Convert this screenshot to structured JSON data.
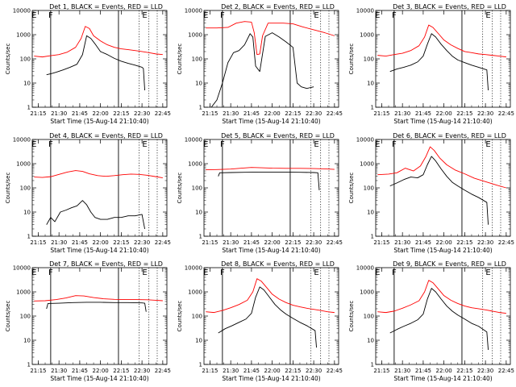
{
  "colors": {
    "events": "#000000",
    "lld": "#ff0000",
    "background": "#ffffff",
    "axis": "#000000"
  },
  "chart_data": [
    {
      "type": "line",
      "title": "Det 1, BLACK = Events, RED = LLD",
      "xlabel": "Start Time (15-Aug-14 21:10:40)",
      "ylabel": "Counts/sec",
      "y_scale": "log",
      "ylim": [
        1,
        10000
      ],
      "y_ticks": [
        "1",
        "10",
        "100",
        "1000",
        "10000"
      ],
      "x_ticks": [
        "21:15",
        "21:30",
        "21:45",
        "22:00",
        "22:15",
        "22:30",
        "22:45"
      ],
      "markers": [
        "E",
        "F",
        "E"
      ],
      "series": [
        {
          "name": "Events",
          "color": "#000000",
          "x": [
            "21:21",
            "21:25",
            "21:28",
            "21:33",
            "21:38",
            "21:43",
            "21:47",
            "21:50",
            "21:53",
            "21:56",
            "22:00",
            "22:05",
            "22:10",
            "22:15",
            "22:20",
            "22:25",
            "22:30",
            "22:31",
            "22:32"
          ],
          "y": [
            22,
            25,
            28,
            35,
            45,
            60,
            150,
            900,
            700,
            420,
            200,
            150,
            105,
            80,
            65,
            55,
            45,
            40,
            5
          ]
        },
        {
          "name": "LLD",
          "color": "#ff0000",
          "x": [
            "21:12",
            "21:18",
            "21:24",
            "21:30",
            "21:36",
            "21:42",
            "21:46",
            "21:49",
            "21:52",
            "21:55",
            "22:00",
            "22:05",
            "22:10",
            "22:15",
            "22:20",
            "22:25",
            "22:30",
            "22:35",
            "22:40",
            "22:45"
          ],
          "y": [
            130,
            120,
            135,
            150,
            190,
            300,
            700,
            2200,
            1800,
            900,
            550,
            380,
            300,
            260,
            240,
            220,
            200,
            180,
            160,
            150
          ]
        }
      ]
    },
    {
      "type": "line",
      "title": "Det 2, BLACK = Events, RED = LLD",
      "xlabel": "Start Time (15-Aug-14 21:10:40)",
      "ylabel": "Counts/sec",
      "y_scale": "log",
      "ylim": [
        1,
        10000
      ],
      "y_ticks": [
        "1",
        "10",
        "100",
        "1000",
        "10000"
      ],
      "x_ticks": [
        "21:15",
        "21:30",
        "21:45",
        "22:00",
        "22:15",
        "22:30",
        "22:45"
      ],
      "markers": [
        "E",
        "F",
        "E"
      ],
      "series": [
        {
          "name": "Events",
          "color": "#000000",
          "x": [
            "21:16",
            "21:20",
            "21:24",
            "21:28",
            "21:32",
            "21:36",
            "21:40",
            "21:44",
            "21:46",
            "21:48",
            "21:51",
            "21:55",
            "22:00",
            "22:05",
            "22:10",
            "22:15",
            "22:18",
            "22:21",
            "22:25",
            "22:30"
          ],
          "y": [
            1,
            2,
            10,
            70,
            180,
            220,
            380,
            1100,
            800,
            50,
            30,
            850,
            1200,
            800,
            500,
            300,
            10,
            7,
            6,
            7
          ]
        },
        {
          "name": "LLD",
          "color": "#ff0000",
          "x": [
            "21:12",
            "21:20",
            "21:28",
            "21:34",
            "21:40",
            "21:45",
            "21:47",
            "21:49",
            "21:51",
            "21:53",
            "21:57",
            "22:02",
            "22:08",
            "22:15",
            "22:22",
            "22:30",
            "22:38",
            "22:45"
          ],
          "y": [
            1900,
            1900,
            2000,
            3000,
            3500,
            3300,
            1200,
            150,
            160,
            900,
            3000,
            3000,
            3000,
            2800,
            2100,
            1600,
            1200,
            900
          ]
        }
      ]
    },
    {
      "type": "line",
      "title": "Det 3, BLACK = Events, RED = LLD",
      "xlabel": "Start Time (15-Aug-14 21:10:40)",
      "ylabel": "Counts/sec",
      "y_scale": "log",
      "ylim": [
        1,
        10000
      ],
      "y_ticks": [
        "1",
        "10",
        "100",
        "1000",
        "10000"
      ],
      "x_ticks": [
        "21:15",
        "21:30",
        "21:45",
        "22:00",
        "22:15",
        "22:30",
        "22:45"
      ],
      "markers": [
        "E",
        "F",
        "E"
      ],
      "series": [
        {
          "name": "Events",
          "color": "#000000",
          "x": [
            "21:21",
            "21:26",
            "21:31",
            "21:36",
            "21:41",
            "21:45",
            "21:48",
            "21:51",
            "21:54",
            "21:58",
            "22:02",
            "22:06",
            "22:10",
            "22:15",
            "22:20",
            "22:25",
            "22:31",
            "22:32"
          ],
          "y": [
            30,
            38,
            45,
            55,
            75,
            130,
            400,
            1100,
            800,
            400,
            220,
            130,
            90,
            70,
            55,
            45,
            35,
            5
          ]
        },
        {
          "name": "LLD",
          "color": "#ff0000",
          "x": [
            "21:12",
            "21:18",
            "21:24",
            "21:30",
            "21:36",
            "21:42",
            "21:46",
            "21:49",
            "21:52",
            "21:56",
            "22:00",
            "22:05",
            "22:10",
            "22:15",
            "22:20",
            "22:25",
            "22:30",
            "22:35",
            "22:40",
            "22:45"
          ],
          "y": [
            140,
            130,
            150,
            170,
            220,
            350,
            800,
            2500,
            2000,
            1100,
            600,
            380,
            270,
            200,
            180,
            160,
            150,
            140,
            130,
            120
          ]
        }
      ]
    },
    {
      "type": "line",
      "title": "Det 4, BLACK = Events, RED = LLD",
      "xlabel": "Start Time (15-Aug-14 21:10:40)",
      "ylabel": "Counts/sec",
      "y_scale": "log",
      "ylim": [
        1,
        10000
      ],
      "y_ticks": [
        "1",
        "10",
        "100",
        "1000",
        "10000"
      ],
      "x_ticks": [
        "21:15",
        "21:30",
        "21:45",
        "22:00",
        "22:15",
        "22:30",
        "22:45"
      ],
      "markers": [
        "E",
        "F",
        "E"
      ],
      "series": [
        {
          "name": "Events",
          "color": "#000000",
          "x": [
            "21:21",
            "21:24",
            "21:27",
            "21:31",
            "21:35",
            "21:39",
            "21:43",
            "21:47",
            "21:50",
            "21:53",
            "21:56",
            "22:00",
            "22:05",
            "22:10",
            "22:15",
            "22:20",
            "22:25",
            "22:30",
            "22:32"
          ],
          "y": [
            3,
            6,
            4,
            10,
            12,
            15,
            18,
            30,
            20,
            10,
            6,
            5,
            5,
            6,
            6,
            7,
            7,
            8,
            2
          ]
        },
        {
          "name": "LLD",
          "color": "#ff0000",
          "x": [
            "21:12",
            "21:18",
            "21:24",
            "21:30",
            "21:36",
            "21:42",
            "21:47",
            "21:52",
            "21:58",
            "22:04",
            "22:10",
            "22:16",
            "22:22",
            "22:28",
            "22:34",
            "22:40",
            "22:45"
          ],
          "y": [
            280,
            270,
            290,
            360,
            450,
            520,
            480,
            380,
            320,
            300,
            320,
            350,
            370,
            360,
            330,
            290,
            260
          ]
        }
      ]
    },
    {
      "type": "line",
      "title": "Det 5, BLACK = Events, RED = LLD",
      "xlabel": "Start Time (15-Aug-14 21:10:40)",
      "ylabel": "Counts/sec",
      "y_scale": "log",
      "ylim": [
        1,
        10000
      ],
      "y_ticks": [
        "1",
        "10",
        "100",
        "1000",
        "10000"
      ],
      "x_ticks": [
        "21:15",
        "21:30",
        "21:45",
        "22:00",
        "22:15",
        "22:30",
        "22:45"
      ],
      "markers": [
        "E",
        "F",
        "E"
      ],
      "series": [
        {
          "name": "Events",
          "color": "#000000",
          "x": [
            "21:21",
            "21:22",
            "21:30",
            "21:40",
            "21:50",
            "22:00",
            "22:10",
            "22:20",
            "22:30",
            "22:33",
            "22:34"
          ],
          "y": [
            300,
            420,
            430,
            440,
            450,
            450,
            450,
            440,
            430,
            420,
            80
          ]
        },
        {
          "name": "LLD",
          "color": "#ff0000",
          "x": [
            "21:12",
            "21:20",
            "21:30",
            "21:38",
            "21:45",
            "21:52",
            "22:00",
            "22:10",
            "22:20",
            "22:30",
            "22:38",
            "22:45"
          ],
          "y": [
            560,
            570,
            600,
            650,
            700,
            680,
            650,
            640,
            640,
            630,
            610,
            580
          ]
        }
      ]
    },
    {
      "type": "line",
      "title": "Det 6, BLACK = Events, RED = LLD",
      "xlabel": "Start Time (15-Aug-14 21:10:40)",
      "ylabel": "Counts/sec",
      "y_scale": "log",
      "ylim": [
        1,
        10000
      ],
      "y_ticks": [
        "1",
        "10",
        "100",
        "1000",
        "10000"
      ],
      "x_ticks": [
        "21:15",
        "21:30",
        "21:45",
        "22:00",
        "22:15",
        "22:30",
        "22:45"
      ],
      "markers": [
        "E",
        "F",
        "E"
      ],
      "series": [
        {
          "name": "Events",
          "color": "#000000",
          "x": [
            "21:21",
            "21:26",
            "21:31",
            "21:36",
            "21:41",
            "21:45",
            "21:48",
            "21:51",
            "21:54",
            "21:58",
            "22:02",
            "22:06",
            "22:10",
            "22:15",
            "22:20",
            "22:25",
            "22:31",
            "22:32"
          ],
          "y": [
            120,
            160,
            220,
            280,
            260,
            350,
            900,
            2000,
            1300,
            600,
            300,
            170,
            120,
            80,
            55,
            40,
            25,
            3
          ]
        },
        {
          "name": "LLD",
          "color": "#ff0000",
          "x": [
            "21:12",
            "21:20",
            "21:26",
            "21:32",
            "21:38",
            "21:43",
            "21:47",
            "21:50",
            "21:53",
            "21:57",
            "22:02",
            "22:08",
            "22:15",
            "22:22",
            "22:30",
            "22:38",
            "22:45"
          ],
          "y": [
            350,
            370,
            420,
            650,
            500,
            800,
            2000,
            5000,
            3500,
            1700,
            900,
            550,
            380,
            250,
            180,
            130,
            100
          ]
        }
      ]
    },
    {
      "type": "line",
      "title": "Det 7, BLACK = Events, RED = LLD",
      "xlabel": "Start Time (15-Aug-14 21:10:40)",
      "ylabel": "Counts/sec",
      "y_scale": "log",
      "ylim": [
        1,
        10000
      ],
      "y_ticks": [
        "1",
        "10",
        "100",
        "1000",
        "10000"
      ],
      "x_ticks": [
        "21:15",
        "21:30",
        "21:45",
        "22:00",
        "22:15",
        "22:30",
        "22:45"
      ],
      "markers": [
        "E",
        "F",
        "E"
      ],
      "series": [
        {
          "name": "Events",
          "color": "#000000",
          "x": [
            "21:21",
            "21:22",
            "21:30",
            "21:40",
            "21:50",
            "22:00",
            "22:10",
            "22:20",
            "22:30",
            "22:32",
            "22:33"
          ],
          "y": [
            200,
            330,
            340,
            360,
            370,
            370,
            360,
            360,
            350,
            340,
            150
          ]
        },
        {
          "name": "LLD",
          "color": "#ff0000",
          "x": [
            "21:12",
            "21:20",
            "21:28",
            "21:35",
            "21:42",
            "21:48",
            "21:55",
            "22:02",
            "22:10",
            "22:18",
            "22:26",
            "22:34",
            "22:40",
            "22:45"
          ],
          "y": [
            420,
            430,
            480,
            560,
            700,
            680,
            580,
            520,
            490,
            480,
            480,
            470,
            450,
            430
          ]
        }
      ]
    },
    {
      "type": "line",
      "title": "Det 8, BLACK = Events, RED = LLD",
      "xlabel": "Start Time (15-Aug-14 21:10:40)",
      "ylabel": "Counts/sec",
      "y_scale": "log",
      "ylim": [
        1,
        10000
      ],
      "y_ticks": [
        "1",
        "10",
        "100",
        "1000",
        "10000"
      ],
      "x_ticks": [
        "21:15",
        "21:30",
        "21:45",
        "22:00",
        "22:15",
        "22:30",
        "22:45"
      ],
      "markers": [
        "E",
        "F",
        "E"
      ],
      "series": [
        {
          "name": "Events",
          "color": "#000000",
          "x": [
            "21:21",
            "21:26",
            "21:31",
            "21:36",
            "21:41",
            "21:45",
            "21:48",
            "21:51",
            "21:54",
            "21:58",
            "22:02",
            "22:06",
            "22:10",
            "22:15",
            "22:20",
            "22:25",
            "22:31",
            "22:32"
          ],
          "y": [
            20,
            30,
            40,
            55,
            75,
            130,
            600,
            1600,
            1200,
            600,
            300,
            180,
            120,
            80,
            55,
            40,
            25,
            5
          ]
        },
        {
          "name": "LLD",
          "color": "#ff0000",
          "x": [
            "21:12",
            "21:18",
            "21:24",
            "21:30",
            "21:36",
            "21:42",
            "21:46",
            "21:49",
            "21:52",
            "21:56",
            "22:00",
            "22:05",
            "22:10",
            "22:15",
            "22:20",
            "22:25",
            "22:30",
            "22:35",
            "22:40",
            "22:45"
          ],
          "y": [
            150,
            140,
            170,
            220,
            300,
            450,
            1000,
            3500,
            2800,
            1500,
            800,
            500,
            360,
            280,
            240,
            210,
            190,
            170,
            150,
            140
          ]
        }
      ]
    },
    {
      "type": "line",
      "title": "Det 9, BLACK = Events, RED = LLD",
      "xlabel": "Start Time (15-Aug-14 21:10:40)",
      "ylabel": "Counts/sec",
      "y_scale": "log",
      "ylim": [
        1,
        10000
      ],
      "y_ticks": [
        "1",
        "10",
        "100",
        "1000",
        "10000"
      ],
      "x_ticks": [
        "21:15",
        "21:30",
        "21:45",
        "22:00",
        "22:15",
        "22:30",
        "22:45"
      ],
      "markers": [
        "E",
        "F",
        "E"
      ],
      "series": [
        {
          "name": "Events",
          "color": "#000000",
          "x": [
            "21:21",
            "21:26",
            "21:31",
            "21:36",
            "21:41",
            "21:45",
            "21:48",
            "21:51",
            "21:54",
            "21:58",
            "22:02",
            "22:06",
            "22:10",
            "22:15",
            "22:20",
            "22:25",
            "22:31",
            "22:32"
          ],
          "y": [
            20,
            28,
            38,
            50,
            70,
            120,
            500,
            1400,
            1000,
            500,
            260,
            160,
            110,
            75,
            50,
            38,
            22,
            4
          ]
        },
        {
          "name": "LLD",
          "color": "#ff0000",
          "x": [
            "21:12",
            "21:18",
            "21:24",
            "21:30",
            "21:36",
            "21:42",
            "21:46",
            "21:49",
            "21:52",
            "21:56",
            "22:00",
            "22:05",
            "22:10",
            "22:15",
            "22:20",
            "22:25",
            "22:30",
            "22:35",
            "22:40",
            "22:45"
          ],
          "y": [
            150,
            140,
            160,
            210,
            290,
            430,
            1000,
            3000,
            2400,
            1300,
            700,
            450,
            330,
            260,
            220,
            200,
            180,
            160,
            140,
            130
          ]
        }
      ]
    }
  ]
}
